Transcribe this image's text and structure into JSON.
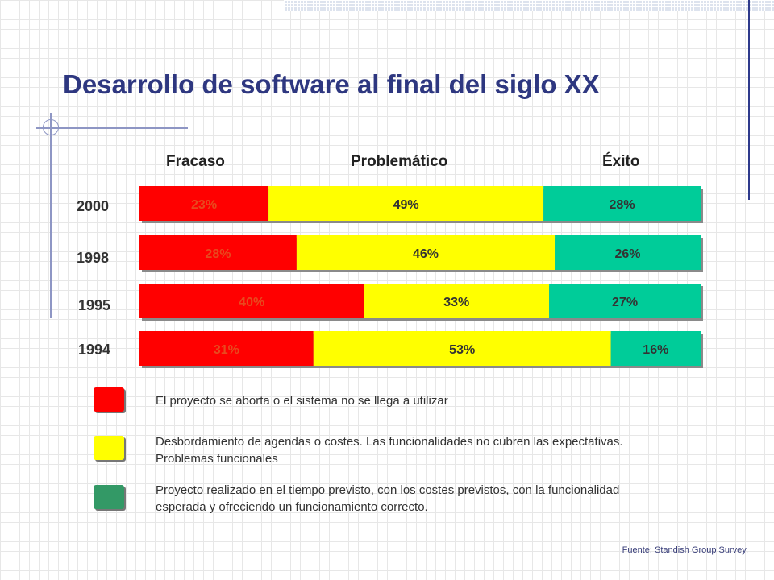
{
  "title": "Desarrollo de software al final del siglo XX",
  "chart_data": {
    "type": "bar",
    "stacked": true,
    "orientation": "horizontal",
    "unit": "%",
    "categories": [
      "2000",
      "1998",
      "1995",
      "1994"
    ],
    "series": [
      {
        "name": "Fracaso",
        "values": [
          23,
          28,
          40,
          31
        ],
        "color": "#ff0000",
        "labels": [
          "23%",
          "28%",
          "40%",
          "31%"
        ]
      },
      {
        "name": "Problemático",
        "values": [
          49,
          46,
          33,
          53
        ],
        "color": "#ffff00",
        "labels": [
          "49%",
          "46%",
          "33%",
          "53%"
        ]
      },
      {
        "name": "Éxito",
        "values": [
          28,
          26,
          27,
          16
        ],
        "color": "#00cc99",
        "labels": [
          "28%",
          "26%",
          "27%",
          "16%"
        ]
      }
    ]
  },
  "legend": [
    {
      "color": "#ff0000",
      "text": "El proyecto se aborta o el sistema no se llega a utilizar"
    },
    {
      "color": "#ffff00",
      "text": "Desbordamiento de agendas o costes. Las funcionalidades no cubren las expectativas. Problemas funcionales"
    },
    {
      "color": "#339966",
      "text": "Proyecto realizado en el tiempo previsto, con los costes previstos, con la funcionalidad esperada y ofreciendo un funcionamiento correcto."
    }
  ],
  "source": "Fuente: Standish Group Survey,"
}
